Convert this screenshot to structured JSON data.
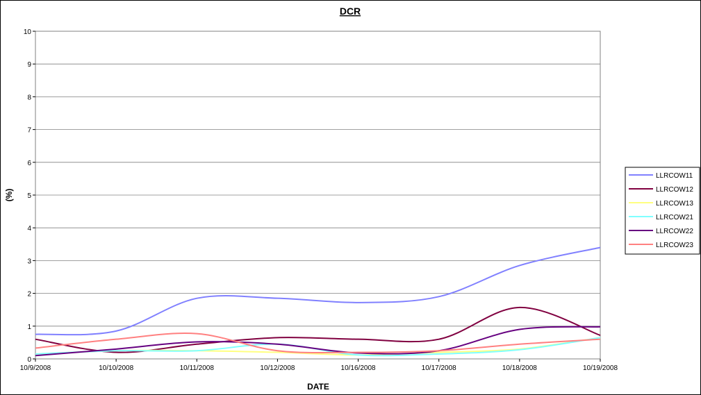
{
  "chart_data": {
    "type": "line",
    "title": "DCR",
    "xlabel": "DATE",
    "ylabel": "(%)",
    "ylim": [
      0,
      10
    ],
    "yticks": [
      "0",
      "1",
      "2",
      "3",
      "4",
      "5",
      "6",
      "7",
      "8",
      "9",
      "10"
    ],
    "categories": [
      "10/9/2008",
      "10/10/2008",
      "10/11/2008",
      "10/12/2008",
      "10/16/2008",
      "10/17/2008",
      "10/18/2008",
      "10/19/2008"
    ],
    "grid": true,
    "legend_position": "right",
    "series": [
      {
        "name": "LLRCOW11",
        "color": "#8080ff",
        "values": [
          0.75,
          0.85,
          1.85,
          1.85,
          1.72,
          1.9,
          2.85,
          3.4
        ]
      },
      {
        "name": "LLRCOW12",
        "color": "#800040",
        "values": [
          0.6,
          0.2,
          0.45,
          0.65,
          0.6,
          0.6,
          1.57,
          0.72
        ]
      },
      {
        "name": "LLRCOW13",
        "color": "#ffff80",
        "values": [
          0.15,
          0.25,
          0.25,
          0.2,
          0.12,
          0.2,
          0.3,
          0.65
        ]
      },
      {
        "name": "LLRCOW21",
        "color": "#80ffff",
        "values": [
          0.15,
          0.25,
          0.25,
          0.45,
          0.12,
          0.15,
          0.28,
          0.65
        ]
      },
      {
        "name": "LLRCOW22",
        "color": "#660080",
        "values": [
          0.1,
          0.3,
          0.52,
          0.45,
          0.18,
          0.25,
          0.9,
          0.98
        ]
      },
      {
        "name": "LLRCOW23",
        "color": "#ff8080",
        "values": [
          0.33,
          0.6,
          0.77,
          0.25,
          0.2,
          0.25,
          0.45,
          0.6
        ]
      }
    ]
  }
}
